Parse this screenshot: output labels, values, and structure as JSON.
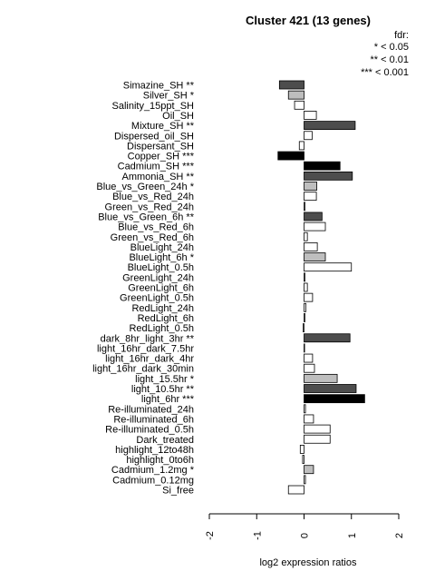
{
  "chart_data": {
    "type": "bar",
    "orientation": "horizontal",
    "title": "Cluster 421 (13 genes)",
    "xlabel": "log2 expression ratios",
    "xlim": [
      -2,
      2
    ],
    "xticks": [
      -2,
      -1,
      0,
      1,
      2
    ],
    "xtick_labels": [
      "-2",
      "-1",
      "0",
      "1",
      "2"
    ],
    "legend": {
      "title": "fdr:",
      "entries": [
        "* < 0.05",
        "** < 0.01",
        "*** < 0.001"
      ],
      "position": "top-right"
    },
    "colors": {
      "white": "#ffffff",
      "light_gray": "#bebebe",
      "dark_gray": "#4d4d4d",
      "black": "#000000"
    },
    "categories": [
      "Simazine_SH **",
      "Silver_SH *",
      "Salinity_15ppt_SH",
      "Oil_SH",
      "Mixture_SH **",
      "Dispersed_oil_SH",
      "Dispersant_SH",
      "Copper_SH ***",
      "Cadmium_SH ***",
      "Ammonia_SH **",
      "Blue_vs_Green_24h *",
      "Blue_vs_Red_24h",
      "Green_vs_Red_24h",
      "Blue_vs_Green_6h **",
      "Blue_vs_Red_6h",
      "Green_vs_Red_6h",
      "BlueLight_24h",
      "BlueLight_6h *",
      "BlueLight_0.5h",
      "GreenLight_24h",
      "GreenLight_6h",
      "GreenLight_0.5h",
      "RedLight_24h",
      "RedLight_6h",
      "RedLight_0.5h",
      "dark_8hr_light_3hr **",
      "light_16hr_dark_7.5hr",
      "light_16hr_dark_4hr",
      "light_16hr_dark_30min",
      "light_15.5hr *",
      "light_10.5hr **",
      "light_6hr ***",
      "Re-illuminated_24h",
      "Re-illuminated_6h",
      "Re-illuminated_0.5h",
      "Dark_treated",
      "highlight_12to48h",
      "highlight_0to6h",
      "Cadmium_1.2mg *",
      "Cadmium_0.12mg",
      "Si_free"
    ],
    "values": [
      -0.52,
      -0.33,
      -0.2,
      0.26,
      1.08,
      0.17,
      -0.1,
      -0.55,
      0.76,
      1.02,
      0.27,
      0.26,
      0.02,
      0.38,
      0.45,
      0.07,
      0.28,
      0.45,
      1.0,
      0.02,
      0.07,
      0.18,
      0.04,
      0.02,
      -0.02,
      0.97,
      0.0,
      0.18,
      0.22,
      0.7,
      1.1,
      1.28,
      0.03,
      0.2,
      0.55,
      0.55,
      -0.08,
      -0.03,
      0.2,
      0.03,
      -0.33
    ],
    "bar_colors": [
      "dark_gray",
      "light_gray",
      "white",
      "white",
      "dark_gray",
      "white",
      "white",
      "black",
      "black",
      "dark_gray",
      "light_gray",
      "white",
      "white",
      "dark_gray",
      "white",
      "white",
      "white",
      "light_gray",
      "white",
      "white",
      "white",
      "white",
      "white",
      "white",
      "white",
      "dark_gray",
      "white",
      "white",
      "white",
      "light_gray",
      "dark_gray",
      "black",
      "white",
      "white",
      "white",
      "white",
      "white",
      "white",
      "light_gray",
      "white",
      "white"
    ]
  }
}
